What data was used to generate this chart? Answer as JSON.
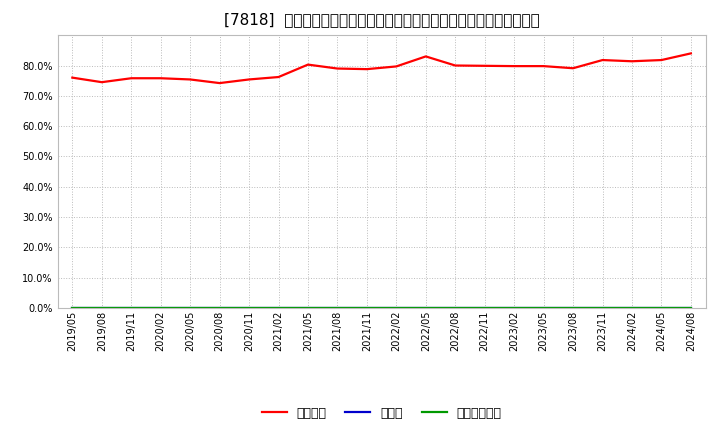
{
  "title": "[7818]  自己資本、のれん、繰延税金資産の総資産に対する比率の推移",
  "x_labels": [
    "2019/05",
    "2019/08",
    "2019/11",
    "2020/02",
    "2020/05",
    "2020/08",
    "2020/11",
    "2021/02",
    "2021/05",
    "2021/08",
    "2021/11",
    "2022/02",
    "2022/05",
    "2022/08",
    "2022/11",
    "2023/02",
    "2023/05",
    "2023/08",
    "2023/11",
    "2024/02",
    "2024/05",
    "2024/08"
  ],
  "equity_ratio": [
    0.76,
    0.745,
    0.758,
    0.758,
    0.754,
    0.742,
    0.754,
    0.762,
    0.803,
    0.79,
    0.788,
    0.797,
    0.83,
    0.8,
    0.799,
    0.798,
    0.798,
    0.791,
    0.818,
    0.814,
    0.818,
    0.84
  ],
  "goodwill_ratio": [
    0,
    0,
    0,
    0,
    0,
    0,
    0,
    0,
    0,
    0,
    0,
    0,
    0,
    0,
    0,
    0,
    0,
    0,
    0,
    0,
    0,
    0
  ],
  "deferred_tax_ratio": [
    0,
    0,
    0,
    0,
    0,
    0,
    0,
    0,
    0,
    0,
    0,
    0,
    0,
    0,
    0,
    0,
    0,
    0,
    0,
    0,
    0,
    0
  ],
  "equity_color": "#FF0000",
  "goodwill_color": "#0000CC",
  "deferred_tax_color": "#009900",
  "background_color": "#FFFFFF",
  "plot_bg_color": "#FFFFFF",
  "grid_color": "#BBBBBB",
  "ylim": [
    0.0,
    0.9
  ],
  "yticks": [
    0.0,
    0.1,
    0.2,
    0.3,
    0.4,
    0.5,
    0.6,
    0.7,
    0.8
  ],
  "legend_labels": [
    "自己資本",
    "のれん",
    "繰延税金資産"
  ],
  "title_fontsize": 11,
  "tick_fontsize": 7,
  "line_width": 1.6
}
